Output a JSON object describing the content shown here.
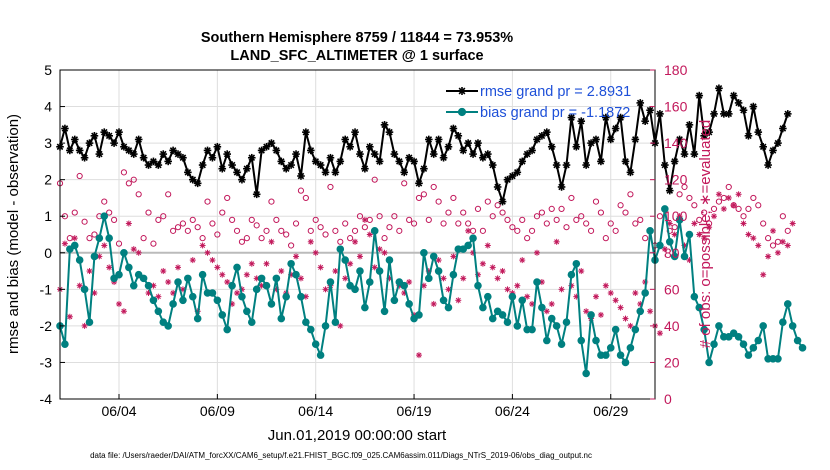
{
  "chart_data": {
    "type": "line",
    "title": [
      "Southern Hemisphere 8759 / 11844 = 73.953%",
      "LAND_SFC_ALTIMETER @ 1 surface"
    ],
    "xlabel": "Jun.01,2019 00:00:00 start",
    "ylabel": "rmse and bias (model - observation)",
    "ylabel_right": "# of obs: o=possible; ∗=evaluated",
    "xlim": [
      1,
      31.25
    ],
    "ylim": [
      -4,
      5
    ],
    "ylim_right": [
      0,
      180
    ],
    "x_ticks": [
      4,
      9,
      14,
      19,
      24,
      29
    ],
    "x_tick_labels": [
      "06/04",
      "06/09",
      "06/14",
      "06/19",
      "06/24",
      "06/29"
    ],
    "y_ticks": [
      -4,
      -3,
      -2,
      -1,
      0,
      1,
      2,
      3,
      4,
      5
    ],
    "y_tick_labels": [
      "-4",
      "-3",
      "-2",
      "-1",
      "0",
      "1",
      "2",
      "3",
      "4",
      "5"
    ],
    "y_right_ticks": [
      0,
      20,
      40,
      60,
      80,
      100,
      120,
      140,
      160,
      180
    ],
    "y_right_tick_labels": [
      "0",
      "20",
      "40",
      "60",
      "80",
      "100",
      "120",
      "140",
      "160",
      "180"
    ],
    "grid": true,
    "zero_line": true,
    "legend": {
      "placement": "top-right",
      "entries": [
        "rmse grand pr = 2.8931",
        "bias grand pr = -1.1872"
      ]
    },
    "series": [
      {
        "name": "rmse",
        "color": "#000000",
        "marker": "asterisk",
        "x_start": 1,
        "x_step": 0.25,
        "values": [
          2.9,
          3.4,
          2.8,
          3.1,
          2.8,
          2.6,
          3.0,
          3.2,
          2.7,
          3.3,
          3.2,
          3.0,
          3.3,
          2.9,
          2.8,
          2.7,
          3.1,
          2.6,
          2.4,
          2.5,
          2.4,
          2.7,
          2.5,
          2.8,
          2.7,
          2.6,
          2.2,
          2.0,
          1.9,
          2.4,
          2.8,
          2.6,
          2.9,
          2.3,
          2.7,
          2.4,
          2.2,
          2.0,
          2.3,
          2.6,
          1.6,
          2.8,
          2.9,
          3.0,
          2.8,
          2.5,
          2.3,
          2.4,
          2.7,
          2.1,
          3.3,
          2.8,
          2.5,
          2.4,
          2.2,
          2.6,
          2.2,
          2.5,
          3.1,
          2.9,
          3.3,
          2.7,
          2.3,
          2.9,
          2.7,
          2.5,
          3.5,
          3.3,
          2.7,
          2.5,
          2.2,
          2.6,
          2.5,
          1.9,
          2.3,
          3.1,
          2.7,
          3.1,
          2.6,
          2.9,
          3.4,
          3.2,
          2.8,
          3.0,
          2.7,
          3.0,
          2.6,
          2.7,
          2.4,
          1.8,
          1.4,
          2.0,
          2.1,
          2.2,
          2.5,
          2.7,
          2.8,
          3.1,
          3.2,
          3.3,
          2.9,
          2.4,
          1.8,
          2.4,
          3.7,
          2.9,
          3.6,
          2.4,
          3.0,
          3.1,
          2.5,
          3.7,
          3.1,
          3.4,
          3.7,
          2.5,
          2.2,
          3.1,
          4.1,
          3.6,
          3.9,
          3.0,
          3.8,
          2.4,
          1.7,
          2.5,
          3.1,
          2.7,
          3.5,
          2.7,
          4.3,
          3.2,
          3.3,
          3.8,
          4.5,
          3.8,
          3.8,
          4.3,
          4.1,
          3.9,
          3.2,
          4.0,
          3.3,
          2.9,
          2.4,
          2.8,
          3.0,
          3.4,
          3.8
        ]
      },
      {
        "name": "bias",
        "color": "#008080",
        "marker": "circle",
        "x_start": 1,
        "x_step": 0.25,
        "values": [
          -2.0,
          -2.5,
          0.1,
          0.2,
          -0.2,
          -1.0,
          -1.9,
          -0.1,
          0.4,
          1.0,
          0.4,
          -0.7,
          -0.6,
          0.0,
          -0.4,
          -0.9,
          -0.6,
          -0.7,
          -0.9,
          -1.3,
          -1.6,
          -1.9,
          -2.0,
          -1.4,
          -0.8,
          -1.3,
          -0.7,
          -1.2,
          -1.8,
          -0.6,
          -1.1,
          -1.1,
          -1.3,
          -1.7,
          -2.1,
          -0.9,
          -0.4,
          -1.2,
          -1.6,
          -1.9,
          -1.0,
          -0.7,
          -0.9,
          -1.4,
          -0.7,
          -1.8,
          -1.2,
          -0.3,
          -0.6,
          -1.2,
          -1.9,
          -2.1,
          -2.5,
          -2.8,
          -2.0,
          -0.8,
          -1.9,
          0.1,
          -0.2,
          -0.9,
          -1.0,
          -0.5,
          -1.5,
          -0.8,
          0.6,
          -0.5,
          -1.6,
          -0.2,
          -1.3,
          -0.8,
          -0.9,
          -1.4,
          -1.8,
          -1.7,
          0.0,
          -0.7,
          -0.1,
          -0.5,
          -1.3,
          -1.5,
          -0.6,
          0.1,
          0.1,
          0.2,
          0.4,
          -0.9,
          -1.5,
          -1.2,
          -1.8,
          -1.6,
          -1.7,
          -1.9,
          -1.2,
          -2.0,
          -1.3,
          -2.1,
          -2.1,
          -0.8,
          -1.5,
          -2.4,
          -1.8,
          -2.0,
          -2.5,
          -1.9,
          -0.6,
          -0.3,
          -2.4,
          -3.3,
          -1.7,
          -2.4,
          -2.8,
          -2.8,
          -2.6,
          -2.1,
          -2.8,
          -3.0,
          -2.6,
          -2.1,
          -1.6,
          -1.1,
          0.6,
          -0.2,
          0.2,
          1.2,
          0.3,
          -0.1,
          0.9,
          -0.1,
          0.5,
          -1.2,
          -1.5,
          -2.1,
          -3.0,
          -2.5,
          -2.0,
          -2.3,
          -2.3,
          -2.2,
          -2.3,
          -2.5,
          -2.8,
          -2.6,
          -2.4,
          -2.0,
          -2.9,
          -2.9,
          -2.9,
          -1.9,
          -1.4,
          -2.0,
          -2.4,
          -2.6
        ]
      },
      {
        "name": "obs possible",
        "axis": "right",
        "color": "#c2185b",
        "marker": "open-circle",
        "x_start": 1,
        "x_step": 0.25,
        "values": [
          118,
          100,
          88,
          102,
          122,
          97,
          88,
          90,
          100,
          108,
          102,
          98,
          85,
          124,
          118,
          120,
          112,
          88,
          102,
          85,
          98,
          100,
          112,
          92,
          94,
          96,
          92,
          98,
          94,
          88,
          108,
          96,
          90,
          102,
          110,
          98,
          92,
          86,
          88,
          98,
          95,
          88,
          92,
          108,
          98,
          92,
          90,
          84,
          96,
          114,
          110,
          92,
          98,
          94,
          90,
          116,
          92,
          86,
          96,
          88,
          92,
          100,
          94,
          98,
          120,
          100,
          88,
          94,
          100,
          92,
          118,
          98,
          96,
          110,
          112,
          98,
          116,
          108,
          96,
          102,
          110,
          96,
          102,
          96,
          92,
          104,
          92,
          108,
          100,
          106,
          102,
          98,
          94,
          92,
          98,
          88,
          92,
          100,
          102,
          96,
          104,
          98,
          104,
          94,
          110,
          98,
          100,
          96,
          92,
          108,
          102,
          88,
          96,
          92,
          106,
          102,
          112,
          96,
          98,
          88,
          92,
          84,
          100,
          104,
          92,
          94,
          112,
          116,
          110,
          106,
          98,
          102,
          96,
          104,
          108,
          110,
          116,
          106,
          104,
          100,
          104,
          110,
          106,
          96,
          88,
          84,
          86,
          100,
          92
        ]
      },
      {
        "name": "obs evaluated",
        "axis": "right",
        "color": "#c2185b",
        "marker": "asterisk",
        "x_start": 1,
        "x_step": 0.25,
        "values": [
          60,
          85,
          45,
          88,
          62,
          40,
          70,
          58,
          78,
          84,
          72,
          64,
          52,
          48,
          96,
          82,
          80,
          66,
          58,
          62,
          56,
          70,
          64,
          58,
          72,
          60,
          66,
          76,
          48,
          84,
          80,
          76,
          72,
          68,
          64,
          52,
          58,
          60,
          68,
          74,
          66,
          62,
          74,
          86,
          60,
          70,
          58,
          68,
          78,
          66,
          56,
          86,
          80,
          72,
          60,
          62,
          70,
          40,
          66,
          74,
          86,
          78,
          98,
          90,
          72,
          82,
          80,
          66,
          54,
          62,
          58,
          64,
          46,
          24,
          62,
          70,
          52,
          76,
          66,
          60,
          78,
          54,
          66,
          92,
          80,
          68,
          74,
          84,
          72,
          66,
          70,
          60,
          58,
          62,
          76,
          56,
          52,
          80,
          64,
          48,
          52,
          86,
          60,
          42,
          62,
          56,
          70,
          48,
          44,
          56,
          46,
          62,
          58,
          54,
          50,
          44,
          40,
          58,
          52,
          64,
          48,
          40,
          36,
          82,
          96,
          90,
          100,
          84,
          76,
          96,
          90,
          88,
          94,
          100,
          112,
          104,
          110,
          106,
          112,
          96,
          90,
          88,
          84,
          68,
          78,
          92,
          80,
          86,
          84,
          96
        ]
      }
    ]
  },
  "footer": "data file: /Users/raeder/DAI/ATM_forcXX/CAM6_setup/f.e21.FHIST_BGC.f09_025.CAM6assim.011/Diags_NTrS_2019-06/obs_diag_output.nc",
  "colors": {
    "rmse": "#000000",
    "bias": "#008080",
    "obs": "#c2185b",
    "grid": "#dedede",
    "zero": "#bbbbbb"
  }
}
